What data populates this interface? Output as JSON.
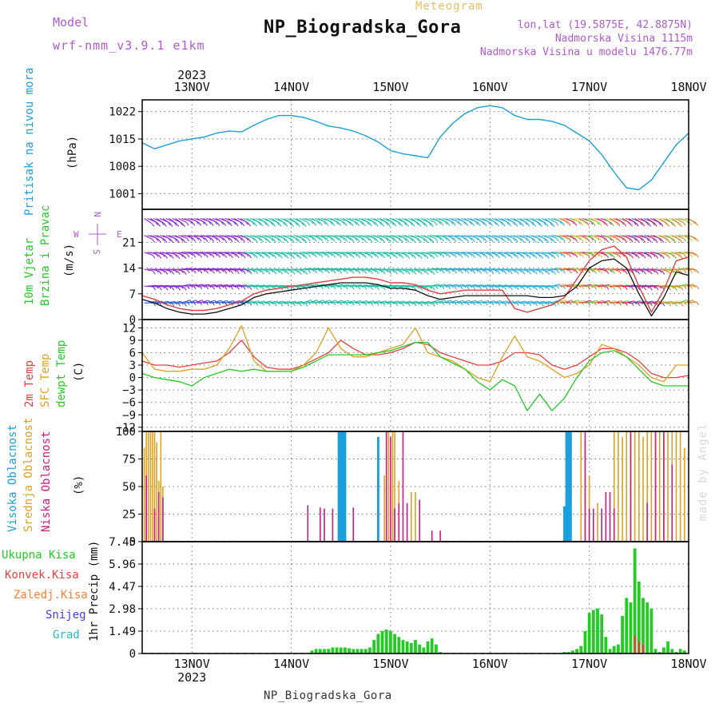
{
  "header": {
    "model_label": "Model",
    "model_version": "wrf-nmm_v3.9.1 e1km",
    "title": "NP_Biogradska_Gora",
    "meteogram_label": "Meteogram",
    "lonlat": "lon,lat (19.5875E, 42.8875N)",
    "elevation": "Nadmorska Visina 1115m",
    "model_elevation": "Nadmorska Visina u modelu 1476.77m"
  },
  "footer": {
    "station": "NP_Biogradska_Gora",
    "watermark": "made by Angel"
  },
  "colors": {
    "pressure": "#1aa0dc",
    "wind_speed": "#111111",
    "wind_gust": "#e04040",
    "temp2m": "#e84040",
    "sfc_temp": "#e0a020",
    "dewpt": "#22cc22",
    "cloud_high": "#1aa0dc",
    "cloud_mid": "#e0a020",
    "cloud_low": "#cc1a80",
    "precip_total": "#22cc22",
    "precip_conv": "#e84040",
    "precip_frz": "#ff8030",
    "snow": "#4040e0",
    "hail": "#20c0c0",
    "barb_purple": "#8a2ad0"
  },
  "chart_data": [
    {
      "type": "line",
      "panel": "pressure",
      "ylabel_title": "Pritisak na nivou mora",
      "ylabel_unit": "(hPa)",
      "x_start_year_label": "2023",
      "x_tick_labels": [
        "13NOV",
        "14NOV",
        "15NOV",
        "16NOV",
        "17NOV",
        "18NOV"
      ],
      "x_start_hour": 12,
      "x_end_hour": 144,
      "ylim": [
        997,
        1025
      ],
      "yticks": [
        1001,
        1008,
        1015,
        1022
      ],
      "ytick_labels": [
        "1001",
        "1008",
        "1015",
        "1022"
      ],
      "grid": true,
      "series": [
        {
          "x": [
            12,
            15,
            18,
            21,
            24,
            27,
            30,
            33,
            36,
            39,
            42,
            45,
            48,
            51,
            54,
            57,
            60,
            63,
            66,
            69,
            72,
            75,
            78,
            81,
            84,
            87,
            90,
            93,
            96,
            99,
            102,
            105,
            108,
            111,
            114,
            117,
            120,
            123,
            126,
            129,
            132,
            135,
            138,
            141,
            144
          ],
          "values": [
            1014,
            1012.5,
            1013.5,
            1014.5,
            1015,
            1015.5,
            1016.5,
            1017,
            1016.8,
            1018.5,
            1020,
            1021,
            1021,
            1020.5,
            1019.5,
            1018.3,
            1017.8,
            1017,
            1015.8,
            1014.2,
            1012,
            1011.2,
            1010.7,
            1010.2,
            1015.5,
            1019,
            1021.5,
            1023,
            1023.5,
            1023,
            1021,
            1020,
            1020,
            1019.5,
            1018.5,
            1016.5,
            1014.5,
            1011,
            1006.5,
            1002.5,
            1002,
            1004.5,
            1009,
            1013.5,
            1016.5
          ]
        }
      ]
    },
    {
      "type": "line",
      "panel": "wind",
      "ylabel_title1": "10m Vjetar",
      "ylabel_title2": "Brzina i Pravac",
      "ylabel_unit": "(m/s)",
      "compass_n": "N",
      "compass_s": "S",
      "compass_e": "E",
      "compass_w": "W",
      "ylim": [
        0,
        30
      ],
      "yticks": [
        0,
        7,
        14,
        21
      ],
      "ytick_labels": [
        "0",
        "7",
        "14",
        "21"
      ],
      "grid": true,
      "series": [
        {
          "x": [
            12,
            15,
            18,
            21,
            24,
            27,
            30,
            33,
            36,
            39,
            42,
            45,
            48,
            51,
            54,
            57,
            60,
            63,
            66,
            69,
            72,
            75,
            78,
            81,
            84,
            87,
            90,
            93,
            96,
            99,
            102,
            105,
            108,
            111,
            114,
            117,
            120,
            123,
            126,
            129,
            132,
            135,
            138,
            141,
            144
          ],
          "values": [
            5.5,
            4.5,
            3,
            2,
            1.5,
            1.5,
            2,
            3,
            4,
            6,
            7,
            7.5,
            8,
            8.5,
            9,
            9.5,
            10,
            10,
            10,
            9.5,
            8.5,
            8.5,
            8,
            6.5,
            5.5,
            6,
            6.5,
            6.5,
            6.5,
            6.5,
            6.5,
            6.5,
            6,
            6,
            6.5,
            9,
            14,
            16,
            16.5,
            14,
            7,
            1,
            6,
            13,
            12
          ]
        },
        {
          "x": [
            12,
            15,
            18,
            21,
            24,
            27,
            30,
            33,
            36,
            39,
            42,
            45,
            48,
            51,
            54,
            57,
            60,
            63,
            66,
            69,
            72,
            75,
            78,
            81,
            84,
            87,
            90,
            93,
            96,
            99,
            102,
            105,
            108,
            111,
            114,
            117,
            120,
            123,
            126,
            129,
            132,
            135,
            138,
            141,
            144
          ],
          "values": [
            6.5,
            5.5,
            4,
            3,
            2.5,
            2.5,
            3,
            4,
            5,
            7,
            8,
            8.5,
            9,
            9.5,
            10,
            10.5,
            11,
            11.5,
            11.5,
            11,
            10,
            10,
            9.5,
            8,
            7,
            7.5,
            8,
            8,
            8,
            8,
            3,
            2,
            3,
            4,
            6,
            11,
            16,
            19,
            20,
            17,
            9,
            2,
            8,
            16,
            17
          ]
        }
      ]
    },
    {
      "type": "line",
      "panel": "temperature",
      "ylabel_title1": "2m Temp",
      "ylabel_title2": "SFC Temp",
      "ylabel_title3": "dewpt Temp",
      "ylabel_unit": "(C)",
      "ylim": [
        -13,
        14
      ],
      "yticks": [
        -12,
        -9,
        -6,
        -3,
        0,
        3,
        6,
        9,
        12
      ],
      "ytick_labels": [
        "−12",
        "−9",
        "−6",
        "−3",
        "0",
        "3",
        "6",
        "9",
        "12"
      ],
      "grid": true,
      "series": [
        {
          "x": [
            12,
            15,
            18,
            21,
            24,
            27,
            30,
            33,
            36,
            39,
            42,
            45,
            48,
            51,
            54,
            57,
            60,
            63,
            66,
            69,
            72,
            75,
            78,
            81,
            84,
            87,
            90,
            93,
            96,
            99,
            102,
            105,
            108,
            111,
            114,
            117,
            120,
            123,
            126,
            129,
            132,
            135,
            138,
            141,
            144
          ],
          "values": [
            4,
            3,
            3,
            2.5,
            3,
            3.5,
            4,
            6,
            9,
            5,
            2.5,
            2,
            2,
            3,
            4.5,
            6,
            9,
            7,
            5.5,
            5.5,
            6,
            7,
            8.5,
            8,
            6,
            5,
            4,
            3,
            3,
            4,
            6,
            6,
            5.5,
            3,
            2,
            3,
            5,
            7,
            7,
            6,
            4,
            1,
            0,
            0,
            0.5
          ]
        },
        {
          "x": [
            12,
            15,
            18,
            21,
            24,
            27,
            30,
            33,
            36,
            39,
            42,
            45,
            48,
            51,
            54,
            57,
            60,
            63,
            66,
            69,
            72,
            75,
            78,
            81,
            84,
            87,
            90,
            93,
            96,
            99,
            102,
            105,
            108,
            111,
            114,
            117,
            120,
            123,
            126,
            129,
            132,
            135,
            138,
            141,
            144
          ],
          "values": [
            6,
            2,
            1.5,
            1.5,
            2,
            2,
            3,
            7,
            12.5,
            4,
            1.5,
            1.5,
            1.5,
            3,
            6,
            12,
            7,
            5,
            5,
            6,
            7,
            8,
            12,
            6,
            5,
            4,
            2,
            0,
            -1,
            5,
            10,
            5,
            4,
            2,
            0,
            1,
            3,
            8,
            7,
            5,
            3,
            0,
            -1,
            3,
            3
          ]
        },
        {
          "x": [
            12,
            15,
            18,
            21,
            24,
            27,
            30,
            33,
            36,
            39,
            42,
            45,
            48,
            51,
            54,
            57,
            60,
            63,
            66,
            69,
            72,
            75,
            78,
            81,
            84,
            87,
            90,
            93,
            96,
            99,
            102,
            105,
            108,
            111,
            114,
            117,
            120,
            123,
            126,
            129,
            132,
            135,
            138,
            141,
            144
          ],
          "values": [
            1,
            0,
            -0.5,
            -1,
            -2,
            0,
            1,
            2,
            1.5,
            2,
            1.5,
            1.5,
            1.5,
            2.5,
            4,
            5.5,
            5.5,
            5.5,
            5.5,
            6,
            6.5,
            7.5,
            8.5,
            8.5,
            5,
            3.5,
            2,
            -1,
            -3,
            -0.5,
            -2,
            -8,
            -4,
            -8,
            -5,
            0,
            4,
            6,
            6.5,
            5,
            2,
            -1,
            -2,
            -2,
            -2
          ]
        }
      ]
    },
    {
      "type": "bar",
      "panel": "cloud",
      "ylabel_title1": "Visoka Oblacnost",
      "ylabel_title2": "Srednja Oblacnost",
      "ylabel_title3": "Niska Oblacnost",
      "ylabel_unit": "(%)",
      "ylim": [
        0,
        100
      ],
      "yticks": [
        0,
        25,
        50,
        75,
        100
      ],
      "ytick_labels": [
        "0",
        "25",
        "50",
        "75",
        "100"
      ],
      "grid": true,
      "series": [
        {
          "name": "Visoka Oblacnost",
          "x": [
            59.5,
            60,
            60.5,
            61,
            69,
            114,
            114.5,
            115,
            115.5
          ],
          "values": [
            100,
            100,
            100,
            100,
            95,
            32,
            100,
            100,
            100
          ]
        },
        {
          "name": "Srednja Oblacnost",
          "x": [
            12.5,
            13,
            13.5,
            14,
            14.5,
            15,
            15.5,
            16,
            16.5,
            17,
            70.5,
            71.5,
            72.5,
            73,
            74,
            77,
            78,
            118,
            119,
            120,
            122,
            126,
            127,
            128,
            129,
            130,
            131,
            132,
            133,
            134,
            135,
            136,
            137,
            138,
            139,
            140,
            141,
            142,
            143
          ],
          "values": [
            85,
            100,
            100,
            100,
            100,
            100,
            90,
            55,
            100,
            50,
            60,
            100,
            100,
            100,
            55,
            45,
            45,
            100,
            90,
            60,
            35,
            100,
            100,
            95,
            100,
            100,
            100,
            100,
            95,
            100,
            100,
            100,
            100,
            95,
            100,
            100,
            100,
            100,
            85
          ]
        },
        {
          "name": "Niska Oblacnost",
          "x": [
            13,
            15,
            16,
            17,
            52,
            55,
            56,
            58,
            63,
            71,
            72,
            73,
            74,
            75,
            76,
            79,
            82,
            84,
            119,
            120,
            121,
            123,
            124,
            125,
            126,
            130,
            134,
            136,
            138,
            140
          ],
          "values": [
            60,
            30,
            45,
            40,
            33,
            31,
            30,
            30,
            31,
            100,
            95,
            30,
            35,
            100,
            35,
            38,
            10,
            10,
            100,
            30,
            30,
            30,
            45,
            45,
            30,
            100,
            35,
            100,
            100,
            70
          ]
        }
      ]
    },
    {
      "type": "bar",
      "panel": "precip",
      "ylabel_unit": "1hr Precip (mm)",
      "legend": [
        "Ukupna Kisa",
        "Konvek.Kisa",
        "Zaledj.Kisa",
        "Snijeg",
        "Grad"
      ],
      "ylim": [
        0,
        7.45
      ],
      "yticks": [
        0,
        1.49,
        2.98,
        4.47,
        5.96,
        7.45
      ],
      "ytick_labels": [
        "0",
        "1.49",
        "2.98",
        "4.47",
        "5.96",
        "7.45"
      ],
      "grid": true,
      "series": [
        {
          "name": "Ukupna Kisa",
          "x": [
            53,
            54,
            55,
            56,
            57,
            58,
            59,
            60,
            61,
            62,
            63,
            64,
            65,
            66,
            67,
            68,
            69,
            70,
            71,
            72,
            73,
            74,
            75,
            76,
            77,
            78,
            79,
            80,
            81,
            82,
            83,
            84,
            114,
            115,
            116,
            117,
            118,
            119,
            120,
            121,
            122,
            123,
            124,
            125,
            126,
            127,
            128,
            129,
            130,
            131,
            132,
            133,
            134,
            135,
            136,
            137,
            138,
            139,
            140,
            141,
            142,
            143
          ],
          "values": [
            0.2,
            0.3,
            0.3,
            0.3,
            0.3,
            0.4,
            0.4,
            0.4,
            0.4,
            0.35,
            0.3,
            0.3,
            0.3,
            0.3,
            0.4,
            0.9,
            1.3,
            1.5,
            1.6,
            1.5,
            1.3,
            1.1,
            0.9,
            0.8,
            0.7,
            0.9,
            0.6,
            0.4,
            0.8,
            1.0,
            0.6,
            0.1,
            0.1,
            0.1,
            0.2,
            0.3,
            0.5,
            1.5,
            2.7,
            2.9,
            3.0,
            2.6,
            1.1,
            0.3,
            0.5,
            0.6,
            2.5,
            3.7,
            3.4,
            7.0,
            4.8,
            3.7,
            3.4,
            3.0,
            0.3,
            0.1,
            0.4,
            0.8,
            0.3,
            0.1,
            0.3,
            0.2
          ]
        },
        {
          "name": "Konvek.Kisa",
          "x": [
            131,
            132,
            133
          ],
          "values": [
            1.2,
            0.8,
            0.6
          ]
        }
      ]
    }
  ]
}
